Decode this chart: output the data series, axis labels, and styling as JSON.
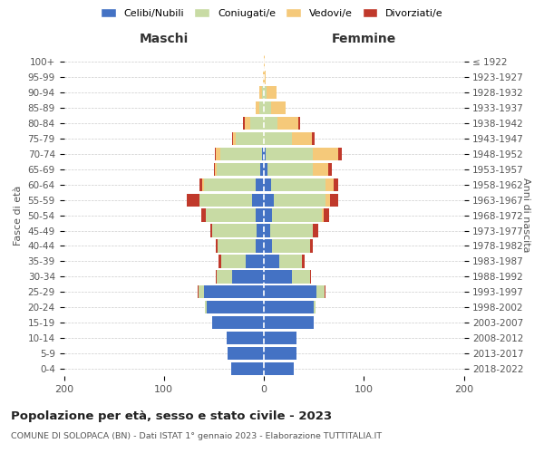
{
  "age_groups": [
    "0-4",
    "5-9",
    "10-14",
    "15-19",
    "20-24",
    "25-29",
    "30-34",
    "35-39",
    "40-44",
    "45-49",
    "50-54",
    "55-59",
    "60-64",
    "65-69",
    "70-74",
    "75-79",
    "80-84",
    "85-89",
    "90-94",
    "95-99",
    "100+"
  ],
  "birth_years": [
    "2018-2022",
    "2013-2017",
    "2008-2012",
    "2003-2007",
    "1998-2002",
    "1993-1997",
    "1988-1992",
    "1983-1987",
    "1978-1982",
    "1973-1977",
    "1968-1972",
    "1963-1967",
    "1958-1962",
    "1953-1957",
    "1948-1952",
    "1943-1947",
    "1938-1942",
    "1933-1937",
    "1928-1932",
    "1923-1927",
    "≤ 1922"
  ],
  "males": {
    "celibi": [
      33,
      36,
      37,
      52,
      57,
      60,
      32,
      18,
      8,
      7,
      8,
      12,
      8,
      4,
      2,
      0,
      0,
      0,
      0,
      0,
      0
    ],
    "coniugati": [
      0,
      0,
      0,
      0,
      2,
      5,
      15,
      25,
      38,
      45,
      50,
      52,
      52,
      43,
      42,
      28,
      14,
      5,
      2,
      0,
      0
    ],
    "vedovi": [
      0,
      0,
      0,
      0,
      0,
      0,
      0,
      0,
      0,
      0,
      0,
      0,
      2,
      2,
      4,
      3,
      5,
      3,
      3,
      1,
      0
    ],
    "divorziati": [
      0,
      0,
      0,
      0,
      0,
      1,
      1,
      2,
      2,
      2,
      5,
      13,
      2,
      1,
      1,
      1,
      2,
      0,
      0,
      0,
      0
    ]
  },
  "females": {
    "nubili": [
      30,
      33,
      33,
      50,
      50,
      53,
      28,
      15,
      8,
      6,
      8,
      10,
      7,
      4,
      2,
      0,
      0,
      0,
      0,
      0,
      0
    ],
    "coniugate": [
      0,
      0,
      0,
      0,
      2,
      8,
      18,
      23,
      38,
      43,
      50,
      52,
      55,
      45,
      47,
      28,
      14,
      7,
      3,
      0,
      0
    ],
    "vedove": [
      0,
      0,
      0,
      0,
      0,
      0,
      0,
      0,
      0,
      0,
      2,
      4,
      8,
      15,
      25,
      20,
      20,
      15,
      10,
      2,
      1
    ],
    "divorziate": [
      0,
      0,
      0,
      0,
      0,
      1,
      1,
      3,
      3,
      5,
      5,
      8,
      4,
      4,
      4,
      3,
      2,
      0,
      0,
      0,
      0
    ]
  },
  "colors": {
    "celibi": "#4472c4",
    "coniugati": "#c8dba4",
    "vedovi": "#f5c97a",
    "divorziati": "#c0392b"
  },
  "xlim": 200,
  "title": "Popolazione per età, sesso e stato civile - 2023",
  "subtitle": "COMUNE DI SOLOPACA (BN) - Dati ISTAT 1° gennaio 2023 - Elaborazione TUTTITALIA.IT",
  "xlabel_left": "Maschi",
  "xlabel_right": "Femmine",
  "ylabel_left": "Fasce di età",
  "ylabel_right": "Anni di nascita",
  "legend_labels": [
    "Celibi/Nubili",
    "Coniugati/e",
    "Vedovi/e",
    "Divorziati/e"
  ],
  "background_color": "#ffffff",
  "grid_color": "#cccccc"
}
